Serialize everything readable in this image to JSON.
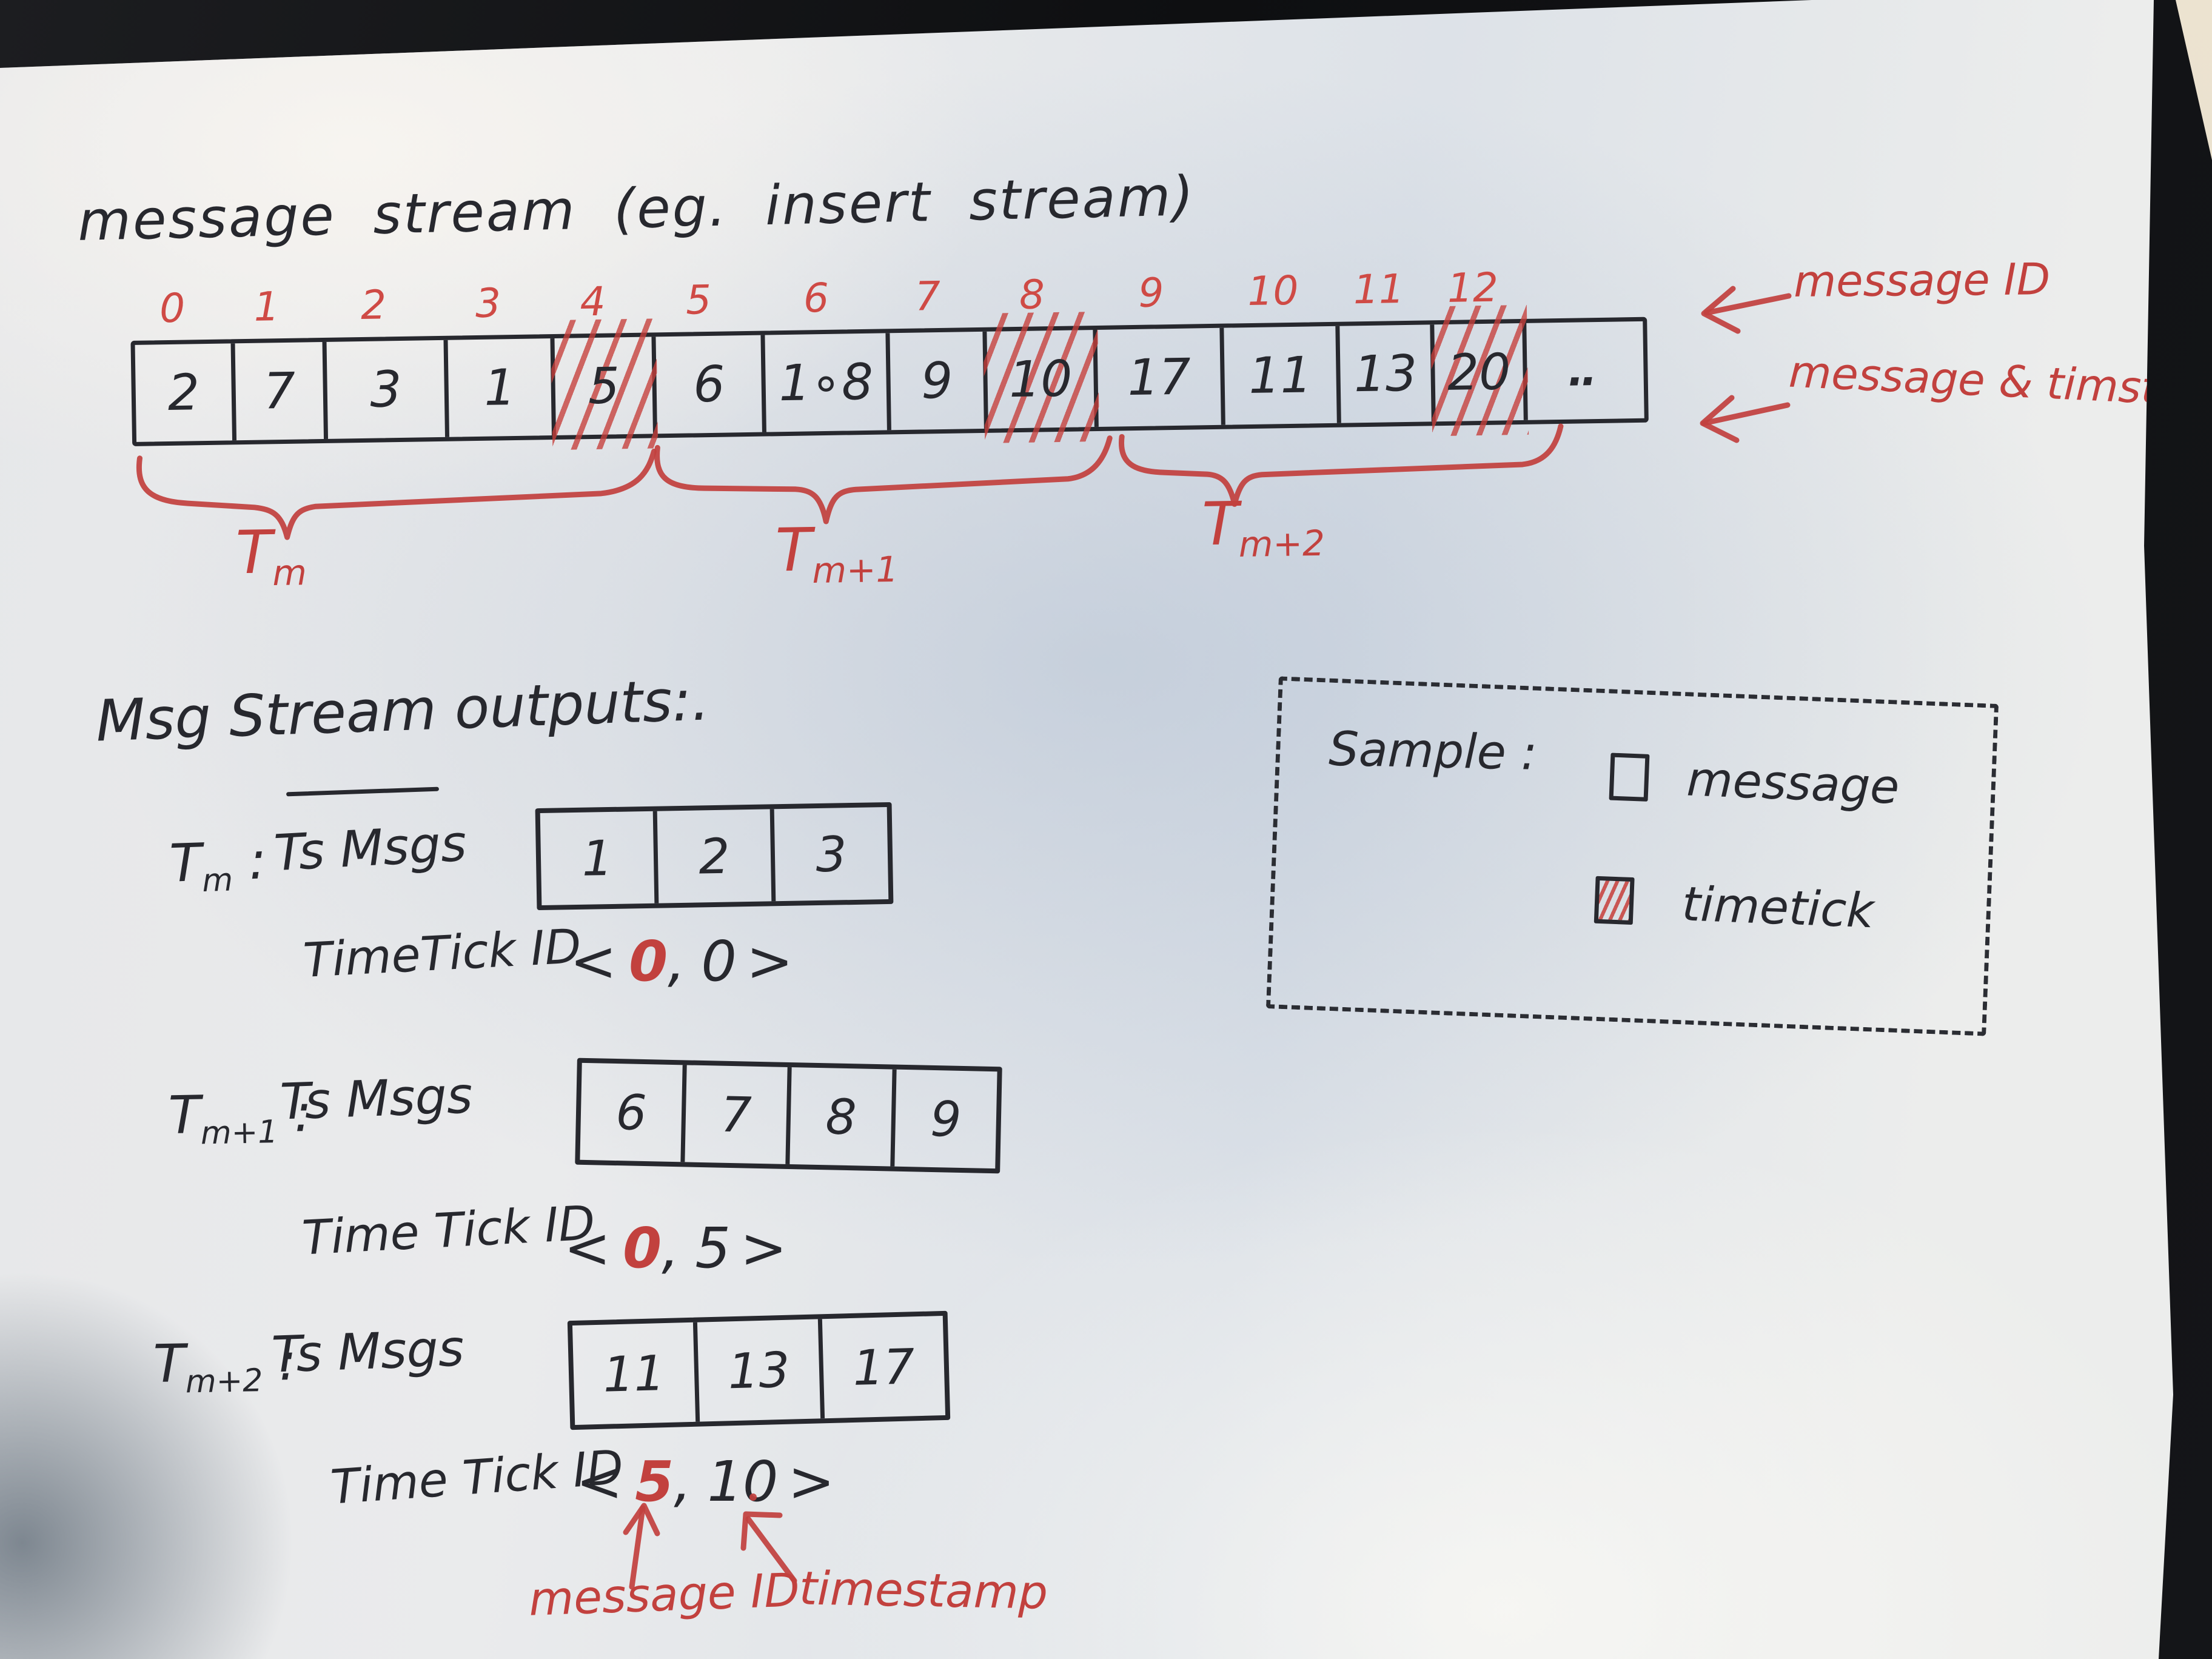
{
  "title": "message stream (eg. insert stream)",
  "colors": {
    "ink": "#27282e",
    "red_pen": "#c2413e"
  },
  "stream": {
    "indices": [
      "0",
      "1",
      "2",
      "3",
      "4",
      "5",
      "6",
      "7",
      "8",
      "9",
      "10",
      "11",
      "12"
    ],
    "cells": [
      {
        "value": "2",
        "type": "message"
      },
      {
        "value": "7",
        "type": "message"
      },
      {
        "value": "3",
        "type": "message"
      },
      {
        "value": "1",
        "type": "message"
      },
      {
        "value": "5",
        "type": "timetick"
      },
      {
        "value": "6",
        "type": "message"
      },
      {
        "value": "1∘8",
        "type": "message"
      },
      {
        "value": "9",
        "type": "message"
      },
      {
        "value": "10",
        "type": "timetick"
      },
      {
        "value": "17",
        "type": "message"
      },
      {
        "value": "11",
        "type": "message"
      },
      {
        "value": "13",
        "type": "message"
      },
      {
        "value": "20",
        "type": "timetick"
      },
      {
        "value": "‥",
        "type": "ellipsis"
      }
    ],
    "windows": [
      {
        "name": "T",
        "sub": "m"
      },
      {
        "name": "T",
        "sub": "m+1"
      },
      {
        "name": "T",
        "sub": "m+2"
      }
    ],
    "annotations": {
      "ids": "message ID",
      "payload": "message & timstamp"
    }
  },
  "outputs": {
    "heading": "Msg Stream outputs:.",
    "rows": [
      {
        "win": "T",
        "sub": "m",
        "colon": ":",
        "msgs_label": "Ts Msgs",
        "msgs": [
          "1",
          "2",
          "3"
        ],
        "tick_label": "TimeTick ID",
        "tick_open": "<",
        "tick_id": "0",
        "tick_comma": ",",
        "tick_ts": "0",
        "tick_close": ">"
      },
      {
        "win": "T",
        "sub": "m+1",
        "colon": ":",
        "msgs_label": "Ts Msgs",
        "msgs": [
          "6",
          "7",
          "8",
          "9"
        ],
        "tick_label": "Time Tick ID",
        "tick_open": "<",
        "tick_id": "0",
        "tick_comma": ",",
        "tick_ts": "5",
        "tick_close": ">"
      },
      {
        "win": "T",
        "sub": "m+2",
        "colon": ":",
        "msgs_label": "Ts Msgs",
        "msgs": [
          "11",
          "13",
          "17"
        ],
        "tick_label": "Time Tick ID",
        "tick_open": "<",
        "tick_id": "5",
        "tick_comma": ",",
        "tick_ts": "10",
        "tick_close": ">"
      }
    ],
    "footnote_id": "message ID",
    "footnote_ts": "timestamp"
  },
  "legend": {
    "title": "Sample :",
    "items": [
      {
        "label": "message",
        "swatch": "message"
      },
      {
        "label": "timetick",
        "swatch": "timetick"
      }
    ]
  }
}
